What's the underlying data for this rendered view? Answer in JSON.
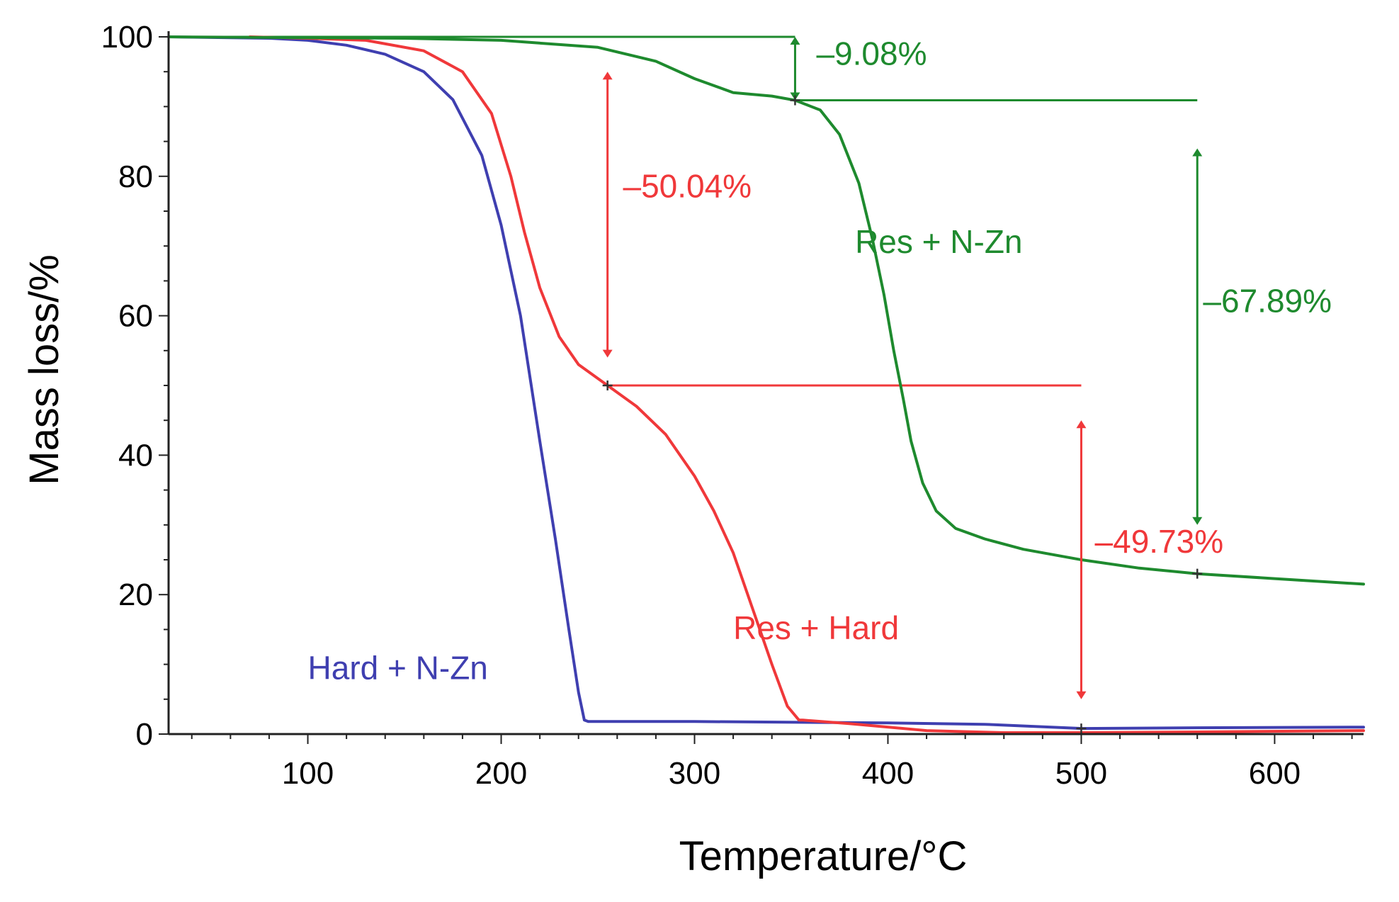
{
  "chart_data": {
    "type": "line",
    "title": "",
    "xlabel": "Temperature/°C",
    "ylabel": "Mass loss/%",
    "xlim": [
      28,
      646
    ],
    "ylim": [
      0,
      100
    ],
    "x_ticks": [
      100,
      200,
      300,
      400,
      500,
      600
    ],
    "y_ticks": [
      0,
      20,
      40,
      60,
      80,
      100
    ],
    "grid": false,
    "colors": {
      "green": "#1e8a2e",
      "red": "#f0383a",
      "blue": "#3f3fb0"
    },
    "series": [
      {
        "name": "Hard + N-Zn",
        "color": "#3f3fb0",
        "x": [
          28,
          80,
          100,
          120,
          140,
          160,
          175,
          190,
          200,
          210,
          220,
          228,
          235,
          240,
          243,
          245,
          300,
          400,
          450,
          500,
          560,
          646
        ],
        "y": [
          100,
          99.8,
          99.5,
          98.8,
          97.5,
          95,
          91,
          83,
          73,
          60,
          42,
          28,
          15,
          6,
          2,
          1.8,
          1.8,
          1.6,
          1.4,
          0.8,
          0.9,
          1
        ]
      },
      {
        "name": "Res + Hard",
        "color": "#f0383a",
        "x": [
          70,
          100,
          130,
          160,
          180,
          195,
          205,
          212,
          220,
          230,
          240,
          255,
          270,
          285,
          300,
          310,
          320,
          330,
          340,
          348,
          354,
          356,
          380,
          420,
          460,
          500,
          560,
          646
        ],
        "y": [
          100,
          99.8,
          99.5,
          98,
          95,
          89,
          80,
          72,
          64,
          57,
          53,
          50,
          47,
          43,
          37,
          32,
          26,
          18,
          10,
          4,
          2,
          2,
          1.5,
          0.5,
          0.2,
          0.2,
          0.3,
          0.5
        ]
      },
      {
        "name": "Res + N-Zn",
        "color": "#1e8a2e",
        "x": [
          28,
          150,
          200,
          250,
          280,
          300,
          320,
          340,
          352,
          365,
          375,
          385,
          392,
          398,
          403,
          408,
          412,
          418,
          425,
          435,
          450,
          470,
          500,
          530,
          560,
          600,
          646
        ],
        "y": [
          100,
          99.8,
          99.5,
          98.5,
          96.5,
          94,
          92,
          91.5,
          90.9,
          89.5,
          86,
          79,
          71,
          63,
          55,
          48,
          42,
          36,
          32,
          29.5,
          28,
          26.5,
          25,
          23.8,
          23,
          22.3,
          21.5
        ]
      }
    ],
    "reference_lines": [
      {
        "color": "#1e8a2e",
        "x1": 28,
        "x2": 352,
        "y": 100
      },
      {
        "color": "#1e8a2e",
        "x1": 352,
        "x2": 560,
        "y": 90.9
      },
      {
        "color": "#f0383a",
        "x1": 255,
        "x2": 500,
        "y": 50
      }
    ],
    "arrows": [
      {
        "color": "#1e8a2e",
        "x": 352,
        "y1": 100,
        "y2": 90.9
      },
      {
        "color": "#1e8a2e",
        "x": 560,
        "y1": 84,
        "y2": 30
      },
      {
        "color": "#f0383a",
        "x": 255,
        "y1": 95,
        "y2": 54
      },
      {
        "color": "#f0383a",
        "x": 500,
        "y1": 45,
        "y2": 5
      }
    ],
    "markers": [
      {
        "x": 352,
        "y": 90.9
      },
      {
        "x": 255,
        "y": 50
      },
      {
        "x": 560,
        "y": 23
      },
      {
        "x": 500,
        "y": 0.8
      }
    ],
    "annotations": [
      {
        "text": "–9.08%",
        "color": "#1e8a2e",
        "x": 363,
        "y": 96
      },
      {
        "text": "–50.04%",
        "color": "#f0383a",
        "x": 263,
        "y": 77
      },
      {
        "text": "–67.89%",
        "color": "#1e8a2e",
        "x": 563,
        "y": 60.5
      },
      {
        "text": "–49.73%",
        "color": "#f0383a",
        "x": 507,
        "y": 26
      },
      {
        "text": "Res + N-Zn",
        "color": "#1e8a2e",
        "x": 383,
        "y": 69
      },
      {
        "text": "Res + Hard",
        "color": "#f0383a",
        "x": 320,
        "y": 13.6
      },
      {
        "text": "Hard + N-Zn",
        "color": "#3f3fb0",
        "x": 100,
        "y": 7.9
      }
    ]
  }
}
